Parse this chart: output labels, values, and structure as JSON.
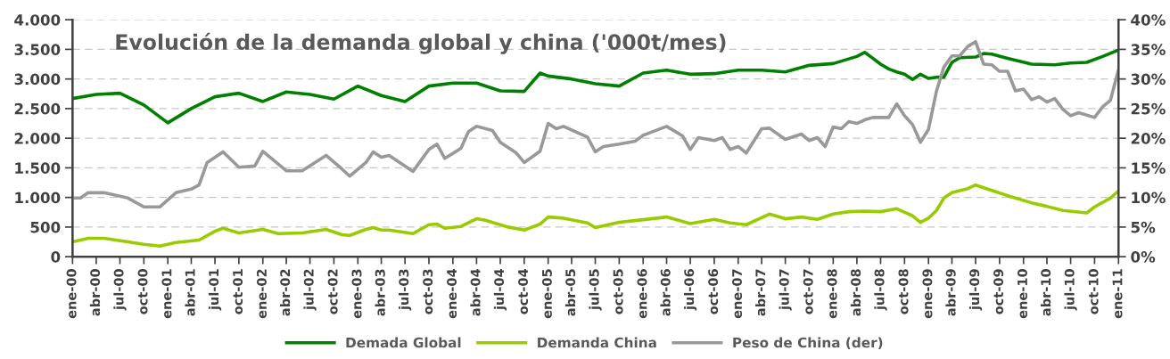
{
  "chart_data": {
    "type": "line",
    "title": "Evolución de la demanda global y china ('000t/mes)",
    "series": [
      {
        "name": "Demada Global",
        "color": "#008000",
        "x": [
          "2000-01",
          "2000-04",
          "2000-07",
          "2000-10",
          "2001-01",
          "2001-04",
          "2001-07",
          "2001-10",
          "2002-01",
          "2002-04",
          "2002-07",
          "2002-10",
          "2003-01",
          "2003-04",
          "2003-07",
          "2003-10",
          "2004-01",
          "2004-04",
          "2004-07",
          "2004-10",
          "2004-12",
          "2005-01",
          "2005-04",
          "2005-07",
          "2005-10",
          "2006-01",
          "2006-04",
          "2006-07",
          "2006-10",
          "2007-01",
          "2007-04",
          "2007-07",
          "2007-10",
          "2008-01",
          "2008-04",
          "2008-05",
          "2008-06",
          "2008-07",
          "2008-08",
          "2008-09",
          "2008-10",
          "2008-11",
          "2008-12",
          "2009-01",
          "2009-02",
          "2009-03",
          "2009-04",
          "2009-05",
          "2009-07",
          "2009-08",
          "2009-09",
          "2009-11",
          "2010-02",
          "2010-05",
          "2010-07",
          "2010-09",
          "2010-11",
          "2011-01"
        ],
        "values": [
          2670,
          2740,
          2760,
          2560,
          2260,
          2500,
          2700,
          2760,
          2620,
          2780,
          2740,
          2660,
          2880,
          2720,
          2620,
          2880,
          2930,
          2930,
          2800,
          2790,
          3100,
          3050,
          3000,
          2920,
          2880,
          3100,
          3150,
          3080,
          3090,
          3150,
          3150,
          3120,
          3230,
          3260,
          3380,
          3450,
          3350,
          3250,
          3170,
          3120,
          3080,
          2990,
          3080,
          3010,
          3030,
          3030,
          3280,
          3360,
          3370,
          3430,
          3420,
          3350,
          3250,
          3240,
          3270,
          3280,
          3380,
          3490
        ]
      },
      {
        "name": "Demanda China",
        "color": "#99cc00",
        "x": [
          "2000-01",
          "2000-03",
          "2000-05",
          "2000-08",
          "2000-10",
          "2000-12",
          "2001-02",
          "2001-05",
          "2001-07",
          "2001-08",
          "2001-10",
          "2002-01",
          "2002-03",
          "2002-06",
          "2002-09",
          "2002-11",
          "2002-12",
          "2003-02",
          "2003-03",
          "2003-04",
          "2003-05",
          "2003-08",
          "2003-10",
          "2003-11",
          "2003-12",
          "2004-02",
          "2004-04",
          "2004-05",
          "2004-08",
          "2004-10",
          "2004-12",
          "2005-01",
          "2005-03",
          "2005-06",
          "2005-07",
          "2005-10",
          "2005-12",
          "2006-02",
          "2006-04",
          "2006-07",
          "2006-10",
          "2006-12",
          "2007-02",
          "2007-05",
          "2007-07",
          "2007-09",
          "2007-11",
          "2008-01",
          "2008-03",
          "2008-05",
          "2008-07",
          "2008-09",
          "2008-11",
          "2008-12",
          "2009-01",
          "2009-02",
          "2009-03",
          "2009-04",
          "2009-06",
          "2009-07",
          "2009-09",
          "2009-11",
          "2010-02",
          "2010-04",
          "2010-06",
          "2010-09",
          "2010-10",
          "2010-12",
          "2011-01"
        ],
        "values": [
          250,
          310,
          310,
          250,
          210,
          180,
          240,
          280,
          430,
          480,
          400,
          460,
          390,
          400,
          460,
          370,
          360,
          460,
          490,
          450,
          450,
          390,
          540,
          550,
          480,
          510,
          640,
          620,
          500,
          450,
          550,
          670,
          650,
          570,
          490,
          580,
          610,
          640,
          670,
          560,
          630,
          570,
          540,
          720,
          640,
          670,
          630,
          720,
          760,
          770,
          760,
          810,
          690,
          580,
          650,
          780,
          990,
          1080,
          1150,
          1210,
          1120,
          1030,
          910,
          850,
          780,
          740,
          840,
          990,
          1110
        ]
      },
      {
        "name": "Peso de China (der)",
        "color": "#999999",
        "axis": "y2",
        "x": [
          "2000-01",
          "2000-02",
          "2000-03",
          "2000-05",
          "2000-08",
          "2000-10",
          "2000-12",
          "2001-02",
          "2001-04",
          "2001-05",
          "2001-06",
          "2001-08",
          "2001-10",
          "2001-12",
          "2002-01",
          "2002-04",
          "2002-06",
          "2002-09",
          "2002-11",
          "2002-12",
          "2003-02",
          "2003-03",
          "2003-04",
          "2003-05",
          "2003-08",
          "2003-10",
          "2003-11",
          "2003-12",
          "2004-02",
          "2004-03",
          "2004-04",
          "2004-06",
          "2004-07",
          "2004-09",
          "2004-10",
          "2004-12",
          "2005-01",
          "2005-02",
          "2005-03",
          "2005-06",
          "2005-07",
          "2005-08",
          "2005-10",
          "2005-12",
          "2006-01",
          "2006-04",
          "2006-06",
          "2006-07",
          "2006-08",
          "2006-10",
          "2006-11",
          "2006-12",
          "2007-01",
          "2007-02",
          "2007-04",
          "2007-05",
          "2007-07",
          "2007-09",
          "2007-10",
          "2007-11",
          "2007-12",
          "2008-01",
          "2008-02",
          "2008-03",
          "2008-04",
          "2008-05",
          "2008-06",
          "2008-08",
          "2008-09",
          "2008-10",
          "2008-11",
          "2008-12",
          "2009-01",
          "2009-02",
          "2009-03",
          "2009-04",
          "2009-05",
          "2009-06",
          "2009-07",
          "2009-08",
          "2009-09",
          "2009-10",
          "2009-11",
          "2009-12",
          "2010-01",
          "2010-02",
          "2010-03",
          "2010-04",
          "2010-05",
          "2010-06",
          "2010-07",
          "2010-08",
          "2010-10",
          "2010-11",
          "2010-12",
          "2011-01"
        ],
        "values": [
          9.9,
          9.9,
          10.8,
          10.8,
          9.9,
          8.4,
          8.4,
          10.8,
          11.4,
          12.1,
          15.9,
          17.7,
          15.1,
          15.3,
          17.8,
          14.5,
          14.5,
          17.1,
          14.8,
          13.6,
          15.9,
          17.7,
          16.8,
          17.1,
          14.4,
          18.1,
          19.0,
          16.6,
          18.3,
          21.1,
          22.0,
          21.3,
          19.3,
          17.5,
          15.9,
          17.8,
          22.5,
          21.6,
          22.0,
          20.2,
          17.7,
          18.6,
          19.0,
          19.5,
          20.5,
          22.0,
          20.4,
          18.1,
          20.1,
          19.6,
          20.1,
          18.1,
          18.6,
          17.5,
          21.6,
          21.7,
          19.8,
          20.7,
          19.6,
          20.1,
          18.6,
          21.9,
          21.6,
          22.8,
          22.5,
          23.1,
          23.5,
          23.5,
          25.8,
          23.8,
          22.3,
          19.3,
          21.5,
          28.0,
          32.0,
          33.9,
          33.9,
          35.5,
          36.3,
          32.5,
          32.4,
          31.3,
          31.3,
          28.0,
          28.3,
          26.5,
          27.0,
          26.1,
          26.7,
          24.9,
          23.8,
          24.3,
          23.5,
          25.3,
          26.4,
          31.6
        ]
      }
    ],
    "xlim": [
      "2000-01",
      "2011-01"
    ],
    "xticks": [
      {
        "value": "2000-01",
        "label": "ene-00"
      },
      {
        "value": "2000-04",
        "label": "abr-00"
      },
      {
        "value": "2000-07",
        "label": "jul-00"
      },
      {
        "value": "2000-10",
        "label": "oct-00"
      },
      {
        "value": "2001-01",
        "label": "ene-01"
      },
      {
        "value": "2001-04",
        "label": "abr-01"
      },
      {
        "value": "2001-07",
        "label": "jul-01"
      },
      {
        "value": "2001-10",
        "label": "oct-01"
      },
      {
        "value": "2002-01",
        "label": "ene-02"
      },
      {
        "value": "2002-04",
        "label": "abr-02"
      },
      {
        "value": "2002-07",
        "label": "jul-02"
      },
      {
        "value": "2002-10",
        "label": "oct-02"
      },
      {
        "value": "2003-01",
        "label": "ene-03"
      },
      {
        "value": "2003-04",
        "label": "abr-03"
      },
      {
        "value": "2003-07",
        "label": "jul-03"
      },
      {
        "value": "2003-10",
        "label": "oct-03"
      },
      {
        "value": "2004-01",
        "label": "ene-04"
      },
      {
        "value": "2004-04",
        "label": "abr-04"
      },
      {
        "value": "2004-07",
        "label": "jul-04"
      },
      {
        "value": "2004-10",
        "label": "oct-04"
      },
      {
        "value": "2005-01",
        "label": "ene-05"
      },
      {
        "value": "2005-04",
        "label": "abr-05"
      },
      {
        "value": "2005-07",
        "label": "jul-05"
      },
      {
        "value": "2005-10",
        "label": "oct-05"
      },
      {
        "value": "2006-01",
        "label": "ene-06"
      },
      {
        "value": "2006-04",
        "label": "abr-06"
      },
      {
        "value": "2006-07",
        "label": "jul-06"
      },
      {
        "value": "2006-10",
        "label": "oct-06"
      },
      {
        "value": "2007-01",
        "label": "ene-07"
      },
      {
        "value": "2007-04",
        "label": "abr-07"
      },
      {
        "value": "2007-07",
        "label": "jul-07"
      },
      {
        "value": "2007-10",
        "label": "oct-07"
      },
      {
        "value": "2008-01",
        "label": "ene-08"
      },
      {
        "value": "2008-04",
        "label": "abr-08"
      },
      {
        "value": "2008-07",
        "label": "jul-08"
      },
      {
        "value": "2008-10",
        "label": "oct-08"
      },
      {
        "value": "2009-01",
        "label": "ene-09"
      },
      {
        "value": "2009-04",
        "label": "abr-09"
      },
      {
        "value": "2009-07",
        "label": "jul-09"
      },
      {
        "value": "2009-10",
        "label": "oct-09"
      },
      {
        "value": "2010-01",
        "label": "ene-10"
      },
      {
        "value": "2010-04",
        "label": "abr-10"
      },
      {
        "value": "2010-07",
        "label": "jul-10"
      },
      {
        "value": "2010-10",
        "label": "oct-10"
      },
      {
        "value": "2011-01",
        "label": "ene-11"
      }
    ],
    "ylim": [
      0,
      4000
    ],
    "yticks": [
      {
        "value": 0,
        "label": "0"
      },
      {
        "value": 500,
        "label": "500"
      },
      {
        "value": 1000,
        "label": "1.000"
      },
      {
        "value": 1500,
        "label": "1.500"
      },
      {
        "value": 2000,
        "label": "2.000"
      },
      {
        "value": 2500,
        "label": "2.500"
      },
      {
        "value": 3000,
        "label": "3.000"
      },
      {
        "value": 3500,
        "label": "3.500"
      },
      {
        "value": 4000,
        "label": "4.000"
      }
    ],
    "y2lim": [
      0,
      40
    ],
    "y2ticks": [
      {
        "value": 0,
        "label": "0%"
      },
      {
        "value": 5,
        "label": "5%"
      },
      {
        "value": 10,
        "label": "10%"
      },
      {
        "value": 15,
        "label": "15%"
      },
      {
        "value": 20,
        "label": "20%"
      },
      {
        "value": 25,
        "label": "25%"
      },
      {
        "value": 30,
        "label": "30%"
      },
      {
        "value": 35,
        "label": "35%"
      },
      {
        "value": 40,
        "label": "40%"
      }
    ],
    "grid": "y",
    "legend": "bottom",
    "marker": "none",
    "line_style": "solid"
  }
}
